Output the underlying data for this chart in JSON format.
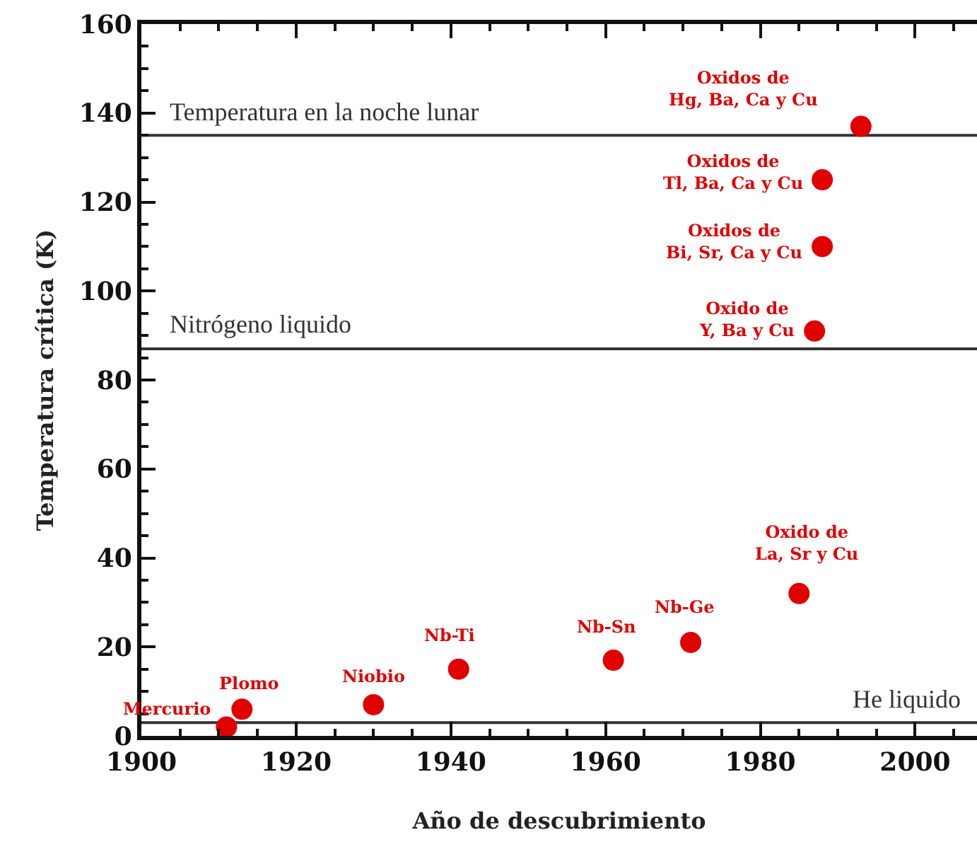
{
  "chart_data": {
    "type": "scatter",
    "xlabel": "Año de descubrimiento",
    "ylabel": "Temperatura crítica (K)",
    "x": [
      1911,
      1913,
      1930,
      1941,
      1961,
      1971,
      1985,
      1987,
      1988,
      1988,
      1993
    ],
    "values": [
      2,
      6,
      7,
      15,
      17,
      21,
      32,
      91,
      110,
      125,
      137
    ],
    "color": "#e00000",
    "marker": "circle",
    "xlim": [
      1900,
      2008
    ],
    "ylim": [
      0,
      160
    ],
    "xticks": [
      1900,
      {
        "value": 1905,
        "label": null
      },
      {
        "value": 1910,
        "label": null
      },
      {
        "value": 1915,
        "label": null
      },
      1920,
      {
        "value": 1925,
        "label": null
      },
      {
        "value": 1930,
        "label": null
      },
      {
        "value": 1935,
        "label": null
      },
      1940,
      {
        "value": 1945,
        "label": null
      },
      {
        "value": 1950,
        "label": null
      },
      {
        "value": 1955,
        "label": null
      },
      1960,
      {
        "value": 1965,
        "label": null
      },
      {
        "value": 1970,
        "label": null
      },
      {
        "value": 1975,
        "label": null
      },
      1980,
      {
        "value": 1985,
        "label": null
      },
      {
        "value": 1990,
        "label": null
      },
      {
        "value": 1995,
        "label": null
      },
      2000,
      {
        "value": 2005,
        "label": null
      }
    ],
    "yticks": [
      0,
      {
        "value": 5,
        "label": null
      },
      {
        "value": 10,
        "label": null
      },
      {
        "value": 15,
        "label": null
      },
      20,
      {
        "value": 25,
        "label": null
      },
      {
        "value": 30,
        "label": null
      },
      {
        "value": 35,
        "label": null
      },
      40,
      {
        "value": 45,
        "label": null
      },
      {
        "value": 50,
        "label": null
      },
      {
        "value": 55,
        "label": null
      },
      60,
      {
        "value": 65,
        "label": null
      },
      {
        "value": 70,
        "label": null
      },
      {
        "value": 75,
        "label": null
      },
      80,
      {
        "value": 85,
        "label": null
      },
      {
        "value": 90,
        "label": null
      },
      {
        "value": 95,
        "label": null
      },
      100,
      {
        "value": 105,
        "label": null
      },
      {
        "value": 110,
        "label": null
      },
      {
        "value": 115,
        "label": null
      },
      120,
      {
        "value": 125,
        "label": null
      },
      {
        "value": 130,
        "label": null
      },
      {
        "value": 135,
        "label": null
      },
      140,
      {
        "value": 145,
        "label": null
      },
      {
        "value": 150,
        "label": null
      },
      {
        "value": 155,
        "label": null
      },
      160
    ],
    "ref_lines": [
      {
        "axis": "y",
        "value": 135,
        "label": "Temperatura en la noche lunar",
        "color": "#333333"
      },
      {
        "axis": "y",
        "value": 87,
        "label": "Nitrógeno liquido",
        "color": "#333333"
      },
      {
        "axis": "y",
        "value": 3,
        "label": "He liquido",
        "color": "#333333"
      }
    ],
    "annotations": [
      {
        "text": "Mercurio",
        "x": 1911,
        "y": 2
      },
      {
        "text": "Plomo",
        "x": 1913,
        "y": 6
      },
      {
        "text": "Niobio",
        "x": 1930,
        "y": 7
      },
      {
        "text": "Nb-Ti",
        "x": 1941,
        "y": 15
      },
      {
        "text": "Nb-Sn",
        "x": 1961,
        "y": 17
      },
      {
        "text": "Nb-Ge",
        "x": 1971,
        "y": 21
      },
      {
        "text": "Oxido de\nLa, Sr y Cu",
        "x": 1985,
        "y": 32
      },
      {
        "text": "Oxido de\nY, Ba y Cu",
        "x": 1987,
        "y": 91
      },
      {
        "text": "Oxidos de\nBi, Sr, Ca y Cu",
        "x": 1988,
        "y": 110
      },
      {
        "text": "Oxidos de\nTl, Ba, Ca y Cu",
        "x": 1988,
        "y": 125
      },
      {
        "text": "Oxidos de\nHg, Ba, Ca y Cu",
        "x": 1993,
        "y": 137
      }
    ]
  }
}
